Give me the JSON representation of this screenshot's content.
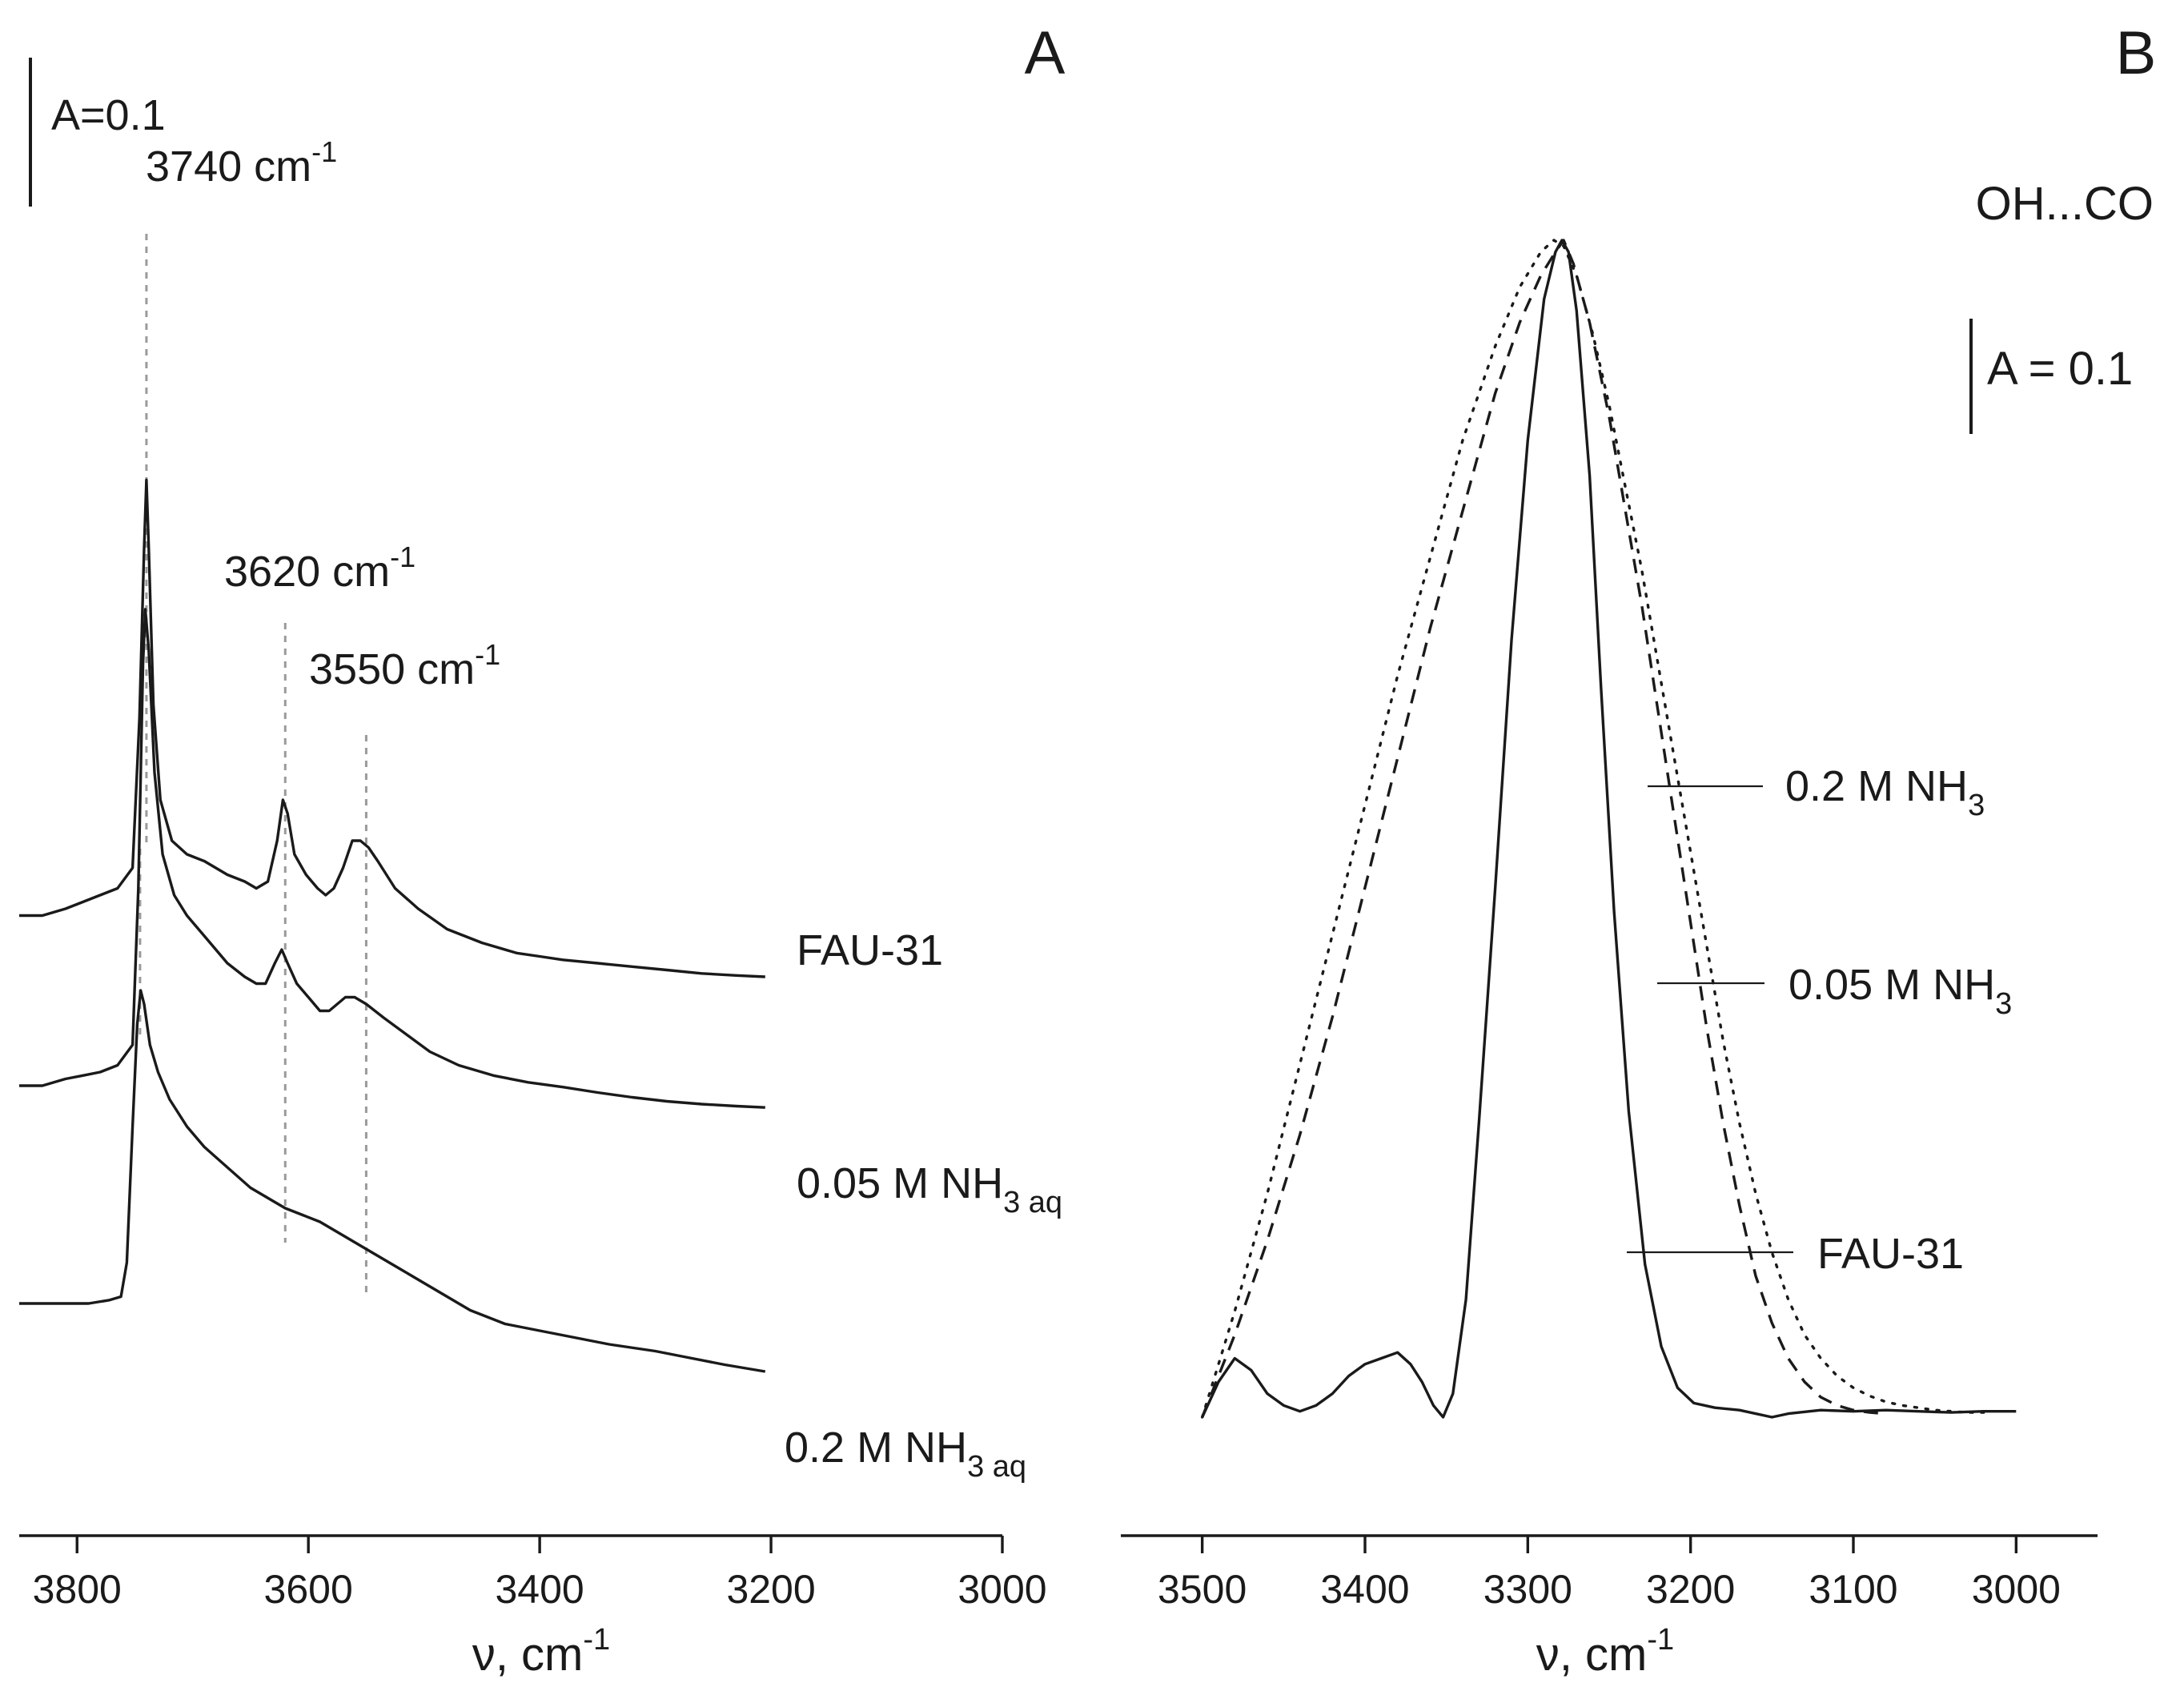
{
  "chart_data": [
    {
      "panel": "A",
      "type": "line",
      "panel_label": "A",
      "xlabel_symbol": "ν, cm",
      "xlabel_exp": "-1",
      "x_reversed": true,
      "xlim": [
        3850,
        3000
      ],
      "ticks": [
        3800,
        3600,
        3400,
        3200,
        3000
      ],
      "scale_label": "A=0.1",
      "peaks": [
        {
          "value": 3740,
          "label": "3740 cm",
          "exp": "-1"
        },
        {
          "value": 3620,
          "label": "3620 cm",
          "exp": "-1"
        },
        {
          "value": 3550,
          "label": "3550 cm",
          "exp": "-1"
        }
      ],
      "series": [
        {
          "name": "FAU-31",
          "label_main": "FAU-31",
          "label_sub": "",
          "style": "solid",
          "points": [
            [
              3850,
              0.41
            ],
            [
              3830,
              0.41
            ],
            [
              3810,
              0.42
            ],
            [
              3795,
              0.43
            ],
            [
              3780,
              0.44
            ],
            [
              3765,
              0.45
            ],
            [
              3752,
              0.48
            ],
            [
              3746,
              0.7
            ],
            [
              3742,
              0.95
            ],
            [
              3740,
              1.05
            ],
            [
              3738,
              0.95
            ],
            [
              3734,
              0.72
            ],
            [
              3728,
              0.58
            ],
            [
              3718,
              0.52
            ],
            [
              3705,
              0.5
            ],
            [
              3690,
              0.49
            ],
            [
              3670,
              0.47
            ],
            [
              3655,
              0.46
            ],
            [
              3645,
              0.45
            ],
            [
              3635,
              0.46
            ],
            [
              3627,
              0.52
            ],
            [
              3622,
              0.58
            ],
            [
              3618,
              0.56
            ],
            [
              3612,
              0.5
            ],
            [
              3602,
              0.47
            ],
            [
              3592,
              0.45
            ],
            [
              3585,
              0.44
            ],
            [
              3578,
              0.45
            ],
            [
              3570,
              0.48
            ],
            [
              3562,
              0.52
            ],
            [
              3555,
              0.52
            ],
            [
              3548,
              0.51
            ],
            [
              3540,
              0.49
            ],
            [
              3525,
              0.45
            ],
            [
              3505,
              0.42
            ],
            [
              3480,
              0.39
            ],
            [
              3450,
              0.37
            ],
            [
              3420,
              0.355
            ],
            [
              3400,
              0.35
            ],
            [
              3380,
              0.345
            ],
            [
              3350,
              0.34
            ],
            [
              3320,
              0.335
            ],
            [
              3290,
              0.33
            ],
            [
              3260,
              0.325
            ],
            [
              3230,
              0.322
            ],
            [
              3205,
              0.32
            ]
          ]
        },
        {
          "name": "0.05 M NH3 aq",
          "label_main": "0.05 M NH",
          "label_sub": "3 aq",
          "style": "solid",
          "points": [
            [
              3850,
              0.16
            ],
            [
              3830,
              0.16
            ],
            [
              3810,
              0.17
            ],
            [
              3795,
              0.175
            ],
            [
              3780,
              0.18
            ],
            [
              3765,
              0.19
            ],
            [
              3752,
              0.22
            ],
            [
              3747,
              0.45
            ],
            [
              3743,
              0.78
            ],
            [
              3741,
              0.86
            ],
            [
              3738,
              0.8
            ],
            [
              3733,
              0.62
            ],
            [
              3726,
              0.5
            ],
            [
              3716,
              0.44
            ],
            [
              3705,
              0.41
            ],
            [
              3690,
              0.38
            ],
            [
              3670,
              0.34
            ],
            [
              3655,
              0.32
            ],
            [
              3645,
              0.31
            ],
            [
              3637,
              0.31
            ],
            [
              3629,
              0.34
            ],
            [
              3623,
              0.36
            ],
            [
              3618,
              0.34
            ],
            [
              3610,
              0.31
            ],
            [
              3600,
              0.29
            ],
            [
              3590,
              0.27
            ],
            [
              3582,
              0.27
            ],
            [
              3575,
              0.28
            ],
            [
              3568,
              0.29
            ],
            [
              3560,
              0.29
            ],
            [
              3550,
              0.28
            ],
            [
              3535,
              0.26
            ],
            [
              3515,
              0.235
            ],
            [
              3495,
              0.21
            ],
            [
              3470,
              0.19
            ],
            [
              3440,
              0.175
            ],
            [
              3410,
              0.165
            ],
            [
              3380,
              0.158
            ],
            [
              3350,
              0.15
            ],
            [
              3320,
              0.143
            ],
            [
              3290,
              0.137
            ],
            [
              3260,
              0.133
            ],
            [
              3230,
              0.13
            ],
            [
              3205,
              0.128
            ]
          ]
        },
        {
          "name": "0.2 M NH3 aq",
          "label_main": "0.2 M NH",
          "label_sub": "3 aq",
          "style": "solid",
          "points": [
            [
              3850,
              -0.16
            ],
            [
              3830,
              -0.16
            ],
            [
              3810,
              -0.16
            ],
            [
              3790,
              -0.16
            ],
            [
              3772,
              -0.155
            ],
            [
              3762,
              -0.15
            ],
            [
              3757,
              -0.1
            ],
            [
              3752,
              0.1
            ],
            [
              3748,
              0.25
            ],
            [
              3745,
              0.3
            ],
            [
              3742,
              0.28
            ],
            [
              3737,
              0.22
            ],
            [
              3730,
              0.18
            ],
            [
              3720,
              0.14
            ],
            [
              3705,
              0.1
            ],
            [
              3690,
              0.07
            ],
            [
              3670,
              0.04
            ],
            [
              3650,
              0.01
            ],
            [
              3630,
              -0.01
            ],
            [
              3620,
              -0.02
            ],
            [
              3605,
              -0.03
            ],
            [
              3590,
              -0.04
            ],
            [
              3570,
              -0.06
            ],
            [
              3550,
              -0.08
            ],
            [
              3520,
              -0.11
            ],
            [
              3490,
              -0.14
            ],
            [
              3460,
              -0.17
            ],
            [
              3430,
              -0.19
            ],
            [
              3400,
              -0.2
            ],
            [
              3370,
              -0.21
            ],
            [
              3340,
              -0.22
            ],
            [
              3300,
              -0.23
            ],
            [
              3270,
              -0.24
            ],
            [
              3240,
              -0.25
            ],
            [
              3205,
              -0.26
            ]
          ]
        }
      ]
    },
    {
      "panel": "B",
      "type": "line",
      "panel_label": "B",
      "title": "OH...CO",
      "xlabel_symbol": "ν, cm",
      "xlabel_exp": "-1",
      "x_reversed": true,
      "xlim": [
        3550,
        2950
      ],
      "ticks": [
        3500,
        3400,
        3300,
        3200,
        3100,
        3000
      ],
      "scale_label": "A = 0.1",
      "series": [
        {
          "name": "FAU-31",
          "label_main": "FAU-31",
          "label_sub": "",
          "style": "solid",
          "points": [
            [
              3500,
              0.0
            ],
            [
              3490,
              0.03
            ],
            [
              3480,
              0.05
            ],
            [
              3470,
              0.04
            ],
            [
              3460,
              0.02
            ],
            [
              3450,
              0.01
            ],
            [
              3440,
              0.005
            ],
            [
              3430,
              0.01
            ],
            [
              3420,
              0.02
            ],
            [
              3410,
              0.035
            ],
            [
              3400,
              0.045
            ],
            [
              3390,
              0.05
            ],
            [
              3380,
              0.055
            ],
            [
              3372,
              0.045
            ],
            [
              3365,
              0.03
            ],
            [
              3358,
              0.01
            ],
            [
              3352,
              0.0
            ],
            [
              3346,
              0.02
            ],
            [
              3338,
              0.1
            ],
            [
              3330,
              0.25
            ],
            [
              3320,
              0.45
            ],
            [
              3310,
              0.66
            ],
            [
              3300,
              0.83
            ],
            [
              3290,
              0.95
            ],
            [
              3283,
              0.99
            ],
            [
              3279,
              1.0
            ],
            [
              3275,
              0.99
            ],
            [
              3270,
              0.94
            ],
            [
              3262,
              0.8
            ],
            [
              3255,
              0.62
            ],
            [
              3247,
              0.43
            ],
            [
              3238,
              0.26
            ],
            [
              3228,
              0.13
            ],
            [
              3218,
              0.06
            ],
            [
              3208,
              0.025
            ],
            [
              3198,
              0.012
            ],
            [
              3185,
              0.008
            ],
            [
              3170,
              0.006
            ],
            [
              3150,
              0.0
            ],
            [
              3140,
              0.003
            ],
            [
              3120,
              0.006
            ],
            [
              3100,
              0.005
            ],
            [
              3080,
              0.006
            ],
            [
              3060,
              0.005
            ],
            [
              3040,
              0.004
            ],
            [
              3020,
              0.005
            ],
            [
              3000,
              0.005
            ]
          ]
        },
        {
          "name": "0.05 M NH3",
          "label_main": "0.05 M NH",
          "label_sub": "3",
          "style": "dashed",
          "points": [
            [
              3500,
              0.0
            ],
            [
              3480,
              0.07
            ],
            [
              3460,
              0.15
            ],
            [
              3440,
              0.24
            ],
            [
              3420,
              0.34
            ],
            [
              3400,
              0.45
            ],
            [
              3380,
              0.56
            ],
            [
              3360,
              0.67
            ],
            [
              3340,
              0.77
            ],
            [
              3320,
              0.87
            ],
            [
              3305,
              0.93
            ],
            [
              3292,
              0.97
            ],
            [
              3283,
              0.99
            ],
            [
              3278,
              1.0
            ],
            [
              3272,
              0.98
            ],
            [
              3262,
              0.93
            ],
            [
              3250,
              0.85
            ],
            [
              3240,
              0.77
            ],
            [
              3230,
              0.69
            ],
            [
              3220,
              0.6
            ],
            [
              3210,
              0.51
            ],
            [
              3200,
              0.42
            ],
            [
              3190,
              0.33
            ],
            [
              3180,
              0.25
            ],
            [
              3170,
              0.18
            ],
            [
              3160,
              0.12
            ],
            [
              3150,
              0.08
            ],
            [
              3140,
              0.05
            ],
            [
              3130,
              0.03
            ],
            [
              3120,
              0.017
            ],
            [
              3110,
              0.01
            ],
            [
              3100,
              0.006
            ],
            [
              3090,
              0.004
            ],
            [
              3080,
              0.003
            ]
          ]
        },
        {
          "name": "0.2 M NH3",
          "label_main": "0.2 M NH",
          "label_sub": "3",
          "style": "dotted",
          "points": [
            [
              3500,
              0.0
            ],
            [
              3480,
              0.09
            ],
            [
              3460,
              0.19
            ],
            [
              3440,
              0.3
            ],
            [
              3420,
              0.41
            ],
            [
              3400,
              0.52
            ],
            [
              3380,
              0.63
            ],
            [
              3360,
              0.73
            ],
            [
              3340,
              0.83
            ],
            [
              3320,
              0.91
            ],
            [
              3305,
              0.96
            ],
            [
              3292,
              0.99
            ],
            [
              3284,
              1.0
            ],
            [
              3278,
              0.995
            ],
            [
              3270,
              0.97
            ],
            [
              3260,
              0.92
            ],
            [
              3250,
              0.86
            ],
            [
              3240,
              0.79
            ],
            [
              3230,
              0.72
            ],
            [
              3220,
              0.64
            ],
            [
              3210,
              0.56
            ],
            [
              3200,
              0.48
            ],
            [
              3190,
              0.4
            ],
            [
              3180,
              0.32
            ],
            [
              3170,
              0.25
            ],
            [
              3160,
              0.19
            ],
            [
              3150,
              0.14
            ],
            [
              3140,
              0.1
            ],
            [
              3130,
              0.07
            ],
            [
              3120,
              0.05
            ],
            [
              3110,
              0.035
            ],
            [
              3100,
              0.025
            ],
            [
              3090,
              0.018
            ],
            [
              3080,
              0.013
            ],
            [
              3070,
              0.01
            ],
            [
              3060,
              0.008
            ],
            [
              3050,
              0.006
            ],
            [
              3040,
              0.005
            ],
            [
              3030,
              0.004
            ],
            [
              3020,
              0.004
            ]
          ]
        }
      ]
    }
  ]
}
